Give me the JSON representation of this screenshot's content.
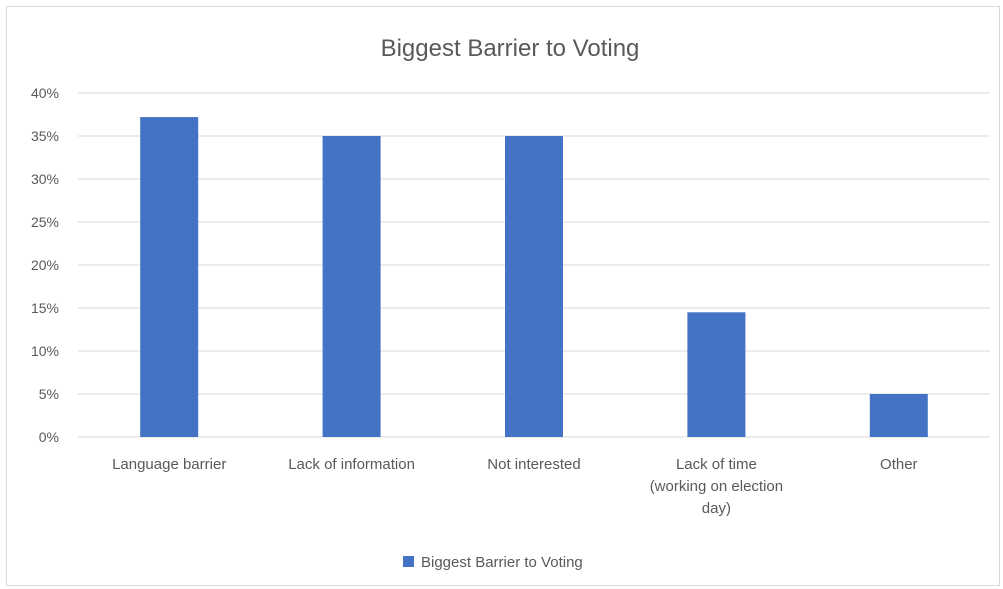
{
  "chart_data": {
    "type": "bar",
    "title": "Biggest Barrier to Voting",
    "xlabel": "",
    "ylabel": "",
    "ylim": [
      0,
      40
    ],
    "y_ticks": [
      "0%",
      "5%",
      "10%",
      "15%",
      "20%",
      "25%",
      "30%",
      "35%",
      "40%"
    ],
    "y_tick_values": [
      0,
      5,
      10,
      15,
      20,
      25,
      30,
      35,
      40
    ],
    "categories": [
      "Language barrier",
      "Lack of information",
      "Not interested",
      "Lack of time (working on election day)",
      "Other"
    ],
    "category_lines": [
      [
        "Language barrier"
      ],
      [
        "Lack of information"
      ],
      [
        "Not interested"
      ],
      [
        "Lack of time",
        "(working on election",
        "day)"
      ],
      [
        "Other"
      ]
    ],
    "series": [
      {
        "name": "Biggest Barrier to Voting",
        "values": [
          37.2,
          35.0,
          35.0,
          14.5,
          5.0
        ],
        "color": "#4472c4"
      }
    ],
    "grid": true,
    "legend_position": "bottom",
    "colors": {
      "bar": "#4472c4",
      "gridline": "#d9d9d9",
      "text": "#595959",
      "border": "#d9d9d9"
    }
  }
}
